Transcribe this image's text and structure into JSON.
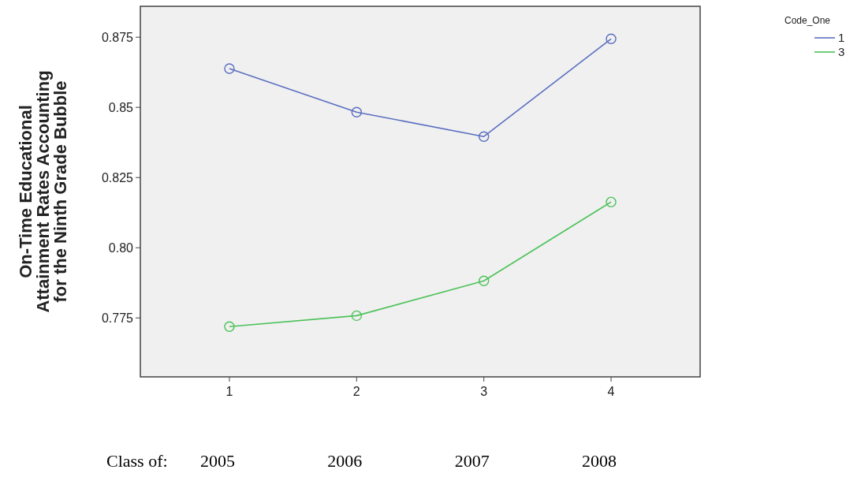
{
  "chart_data": {
    "type": "line",
    "ylabel": "On-Time Educational\nAttainment Rates Accounting\nfor the Ninth Grade Bubble",
    "legend_title": "Code_One",
    "x": [
      1,
      2,
      3,
      4
    ],
    "xlim": [
      0.3,
      4.7
    ],
    "xticks": [
      1,
      2,
      3,
      4
    ],
    "ylim": [
      0.754,
      0.886
    ],
    "yticks": [
      {
        "value": 0.775,
        "label": "0.775"
      },
      {
        "value": 0.8,
        "label": "0.80"
      },
      {
        "value": 0.825,
        "label": "0.825"
      },
      {
        "value": 0.85,
        "label": "0.85"
      },
      {
        "value": 0.875,
        "label": "0.875"
      }
    ],
    "series": [
      {
        "name": "1",
        "color": "#5b6fc0",
        "values": [
          0.8638,
          0.8483,
          0.8396,
          0.8744
        ]
      },
      {
        "name": "3",
        "color": "#4cc25a",
        "values": [
          0.7719,
          0.7758,
          0.7882,
          0.8163
        ]
      }
    ],
    "marker": "circle",
    "line_style": "solid",
    "grid": false,
    "legend": "top right",
    "annotations": [
      "Class of:",
      "2005",
      "2006",
      "2007",
      "2008"
    ]
  }
}
